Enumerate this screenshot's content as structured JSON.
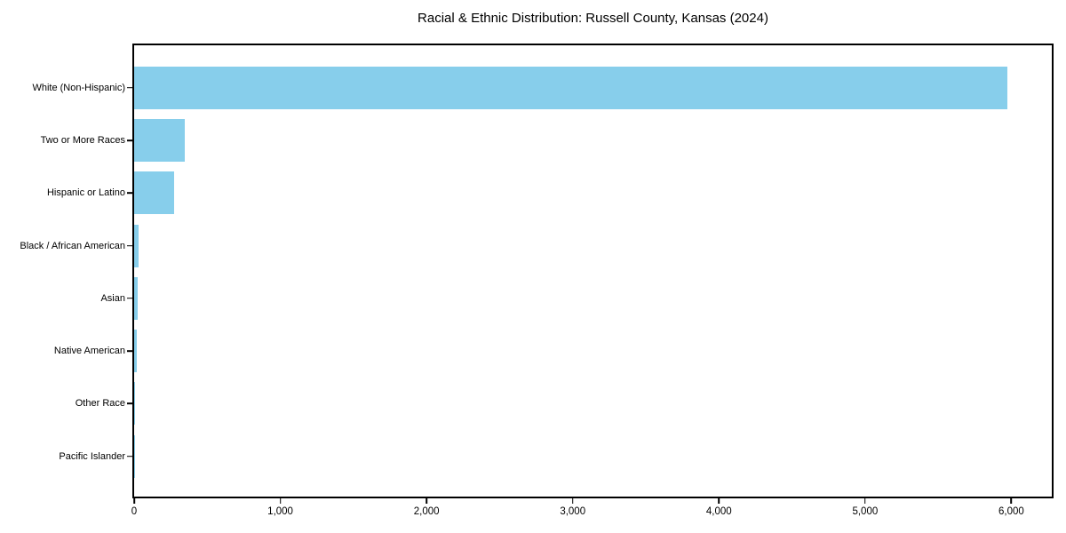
{
  "title": "Racial & Ethnic Distribution: Russell County, Kansas (2024)",
  "colors": {
    "bar": "#87CEEB",
    "axis": "#000000",
    "background": "#FFFFFF",
    "text": "#000000"
  },
  "chart_data": {
    "type": "bar",
    "orientation": "horizontal",
    "title": "Racial & Ethnic Distribution: Russell County, Kansas (2024)",
    "categories": [
      "White (Non-Hispanic)",
      "Two or More Races",
      "Hispanic or Latino",
      "Black / African American",
      "Asian",
      "Native American",
      "Other Race",
      "Pacific Islander"
    ],
    "values": [
      5975,
      347,
      275,
      33,
      27,
      21,
      5,
      1
    ],
    "xlabel": "",
    "ylabel": "",
    "xlim": [
      0,
      6277
    ],
    "xticks": [
      0,
      1000,
      2000,
      3000,
      4000,
      5000,
      6000
    ],
    "xtick_labels": [
      "0",
      "1,000",
      "2,000",
      "3,000",
      "4,000",
      "5,000",
      "6,000"
    ],
    "grid": false,
    "legend": false,
    "bar_color": "#87CEEB"
  }
}
